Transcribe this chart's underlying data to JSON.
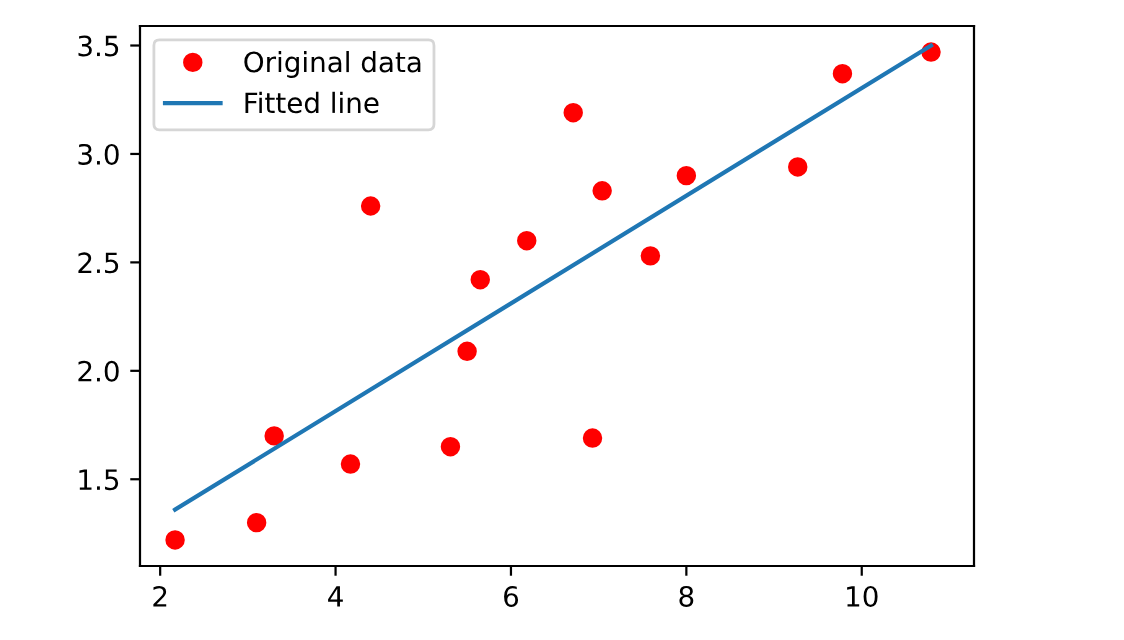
{
  "chart_data": {
    "type": "scatter",
    "series": [
      {
        "name": "Original data",
        "color": "#ff0000",
        "marker": "circle",
        "x": [
          3.3,
          4.4,
          5.5,
          6.71,
          6.93,
          4.17,
          9.78,
          6.18,
          7.59,
          2.17,
          7.04,
          10.79,
          5.31,
          8.0,
          5.65,
          9.27,
          3.1
        ],
        "values": [
          1.7,
          2.76,
          2.09,
          3.19,
          1.69,
          1.57,
          3.37,
          2.6,
          2.53,
          1.22,
          2.83,
          3.47,
          1.65,
          2.9,
          2.42,
          2.94,
          1.3
        ]
      },
      {
        "name": "Fitted line",
        "type": "line",
        "color": "#1f77b4",
        "x": [
          2.17,
          10.79
        ],
        "values": [
          1.36,
          3.5
        ]
      }
    ],
    "xlim": [
      1.77,
      11.28
    ],
    "ylim": [
      1.1,
      3.59
    ],
    "xticks": [
      2,
      4,
      6,
      8,
      10
    ],
    "yticks": [
      1.5,
      {
        "value": 2,
        "label": "2.0"
      },
      2.5,
      {
        "value": 3,
        "label": "3.0"
      },
      3.5
    ],
    "legend": "top left"
  }
}
